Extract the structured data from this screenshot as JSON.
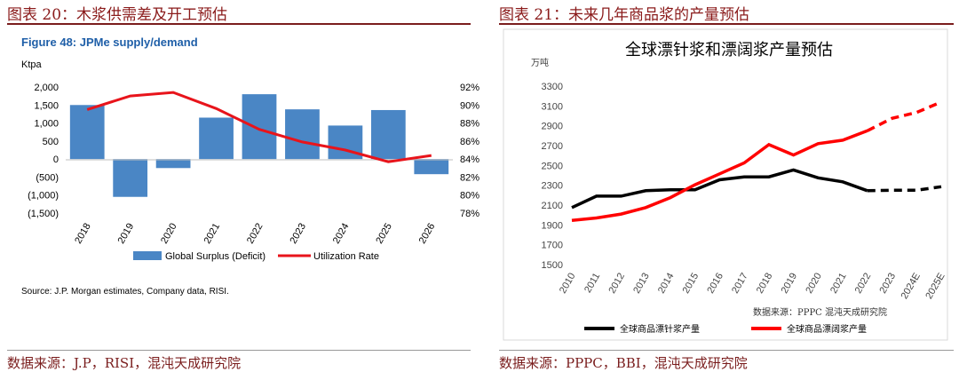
{
  "left": {
    "caption": "图表 20：木浆供需差及开工预估",
    "source_footer": "数据来源：J.P，RISI，混沌天成研究院",
    "chart_data": {
      "type": "bar+line",
      "title": "Figure 48: JPMe supply/demand",
      "ylabel_left": "Ktpa",
      "categories": [
        "2018",
        "2019",
        "2020",
        "2021",
        "2022",
        "2023",
        "2024",
        "2025",
        "2026"
      ],
      "series": [
        {
          "name": "Global Surplus (Deficit)",
          "kind": "bar",
          "axis": "left",
          "values": [
            1500,
            -1050,
            -250,
            1150,
            1800,
            1380,
            930,
            1360,
            -420
          ]
        },
        {
          "name": "Utilization Rate",
          "kind": "line",
          "axis": "right",
          "values": [
            89.5,
            91.0,
            91.4,
            89.6,
            87.3,
            85.9,
            85.0,
            83.7,
            84.4
          ]
        }
      ],
      "ylim_left": [
        -1500,
        2000
      ],
      "yticks_left": [
        "2,000",
        "1,500",
        "1,000",
        "500",
        "0",
        "(500)",
        "(1,000)",
        "(1,500)"
      ],
      "ylim_right": [
        78,
        92
      ],
      "yticks_right": [
        "92%",
        "90%",
        "88%",
        "86%",
        "84%",
        "82%",
        "80%",
        "78%"
      ],
      "note": "Source: J.P. Morgan estimates, Company data, RISI.",
      "colors": {
        "bar": "#4a86c5",
        "line": "#e8141b",
        "title": "#1f5fa8"
      }
    }
  },
  "right": {
    "caption": "图表 21：未来几年商品浆的产量预估",
    "source_footer": "数据来源：PPPC，BBI，混沌天成研究院",
    "chart_data": {
      "type": "line",
      "title": "全球漂针浆和漂阔浆产量预估",
      "ylabel": "万吨",
      "x": [
        "2010",
        "2011",
        "2012",
        "2013",
        "2014",
        "2015",
        "2016",
        "2017",
        "2018",
        "2019",
        "2020",
        "2021",
        "2022",
        "2023",
        "2024E",
        "2025E"
      ],
      "ylim": [
        1500,
        3300
      ],
      "yticks": [
        3300,
        3100,
        2900,
        2700,
        2500,
        2300,
        2100,
        1900,
        1700,
        1500
      ],
      "series": [
        {
          "name": "全球商品漂针浆产量",
          "color": "#000000",
          "values": [
            2075,
            2190,
            2190,
            2245,
            2255,
            2255,
            2355,
            2385,
            2385,
            2455,
            2375,
            2335,
            2245,
            2250,
            2250,
            2285
          ],
          "estimate_from_index": 13
        },
        {
          "name": "全球商品漂阔浆产量",
          "color": "#ff0000",
          "values": [
            1945,
            1970,
            2010,
            2075,
            2175,
            2305,
            2415,
            2525,
            2710,
            2605,
            2720,
            2755,
            2850,
            2975,
            3035,
            3140
          ],
          "estimate_from_index": 13
        }
      ],
      "note": "数据来源：PPPC 混沌天成研究院"
    }
  }
}
